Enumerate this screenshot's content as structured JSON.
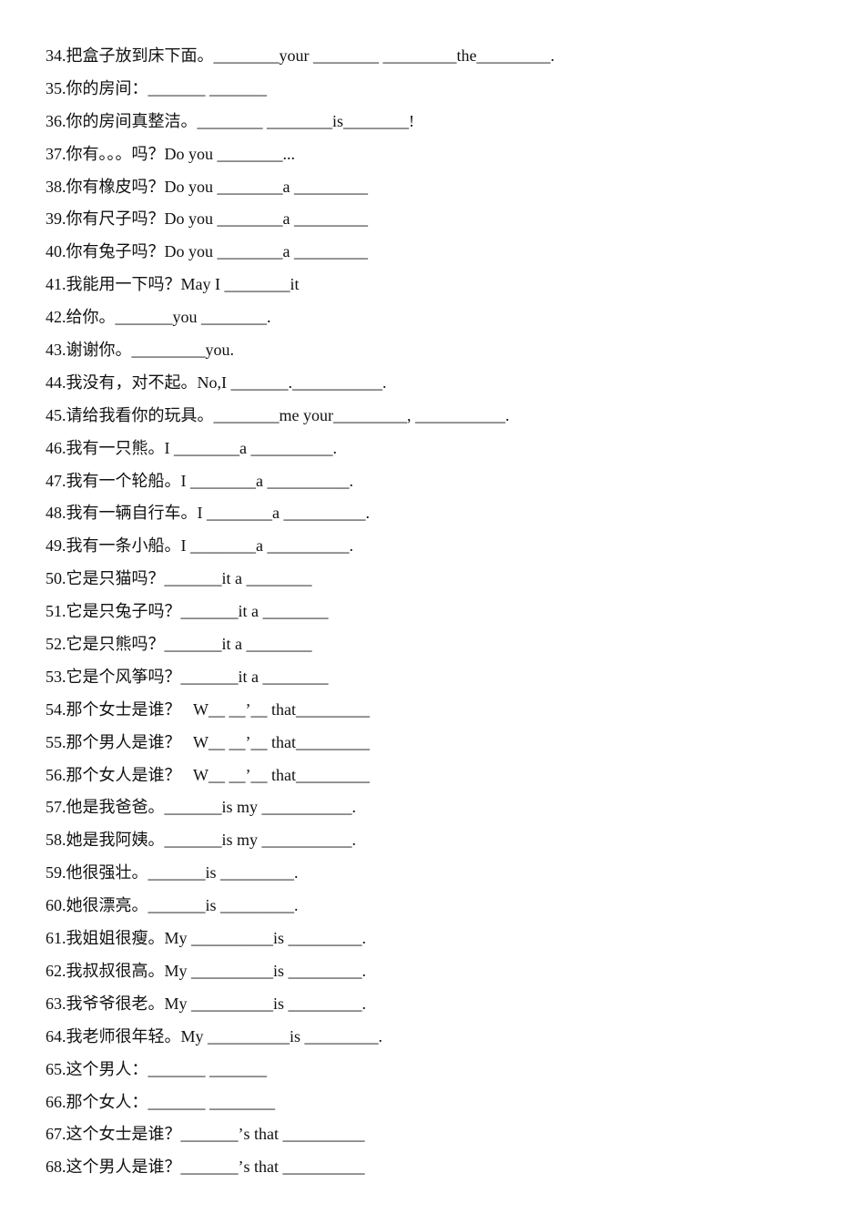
{
  "lines": [
    "34.把盒子放到床下面。________your ________ _________the_________.",
    "35.你的房间：_______ _______",
    "36.你的房间真整洁。________ ________is________!",
    "37.你有。。。吗？Do you ________...",
    "38.你有橡皮吗？Do you ________a _________",
    "39.你有尺子吗？Do you ________a _________",
    "40.你有兔子吗？Do you ________a _________",
    "41.我能用一下吗？May I ________it",
    "42.给你。_______you ________.",
    "43.谢谢你。_________you.",
    "44.我没有，对不起。No,I _______.___________.",
    "45.请给我看你的玩具。________me your_________, ___________.",
    "46.我有一只熊。I ________a __________.",
    "47.我有一个轮船。I ________a __________.",
    "48.我有一辆自行车。I ________a __________.",
    "49.我有一条小船。I ________a __________.",
    "50.它是只猫吗？_______it a ________",
    "51.它是只兔子吗？_______it a ________",
    "52.它是只熊吗？_______it a ________",
    "53.它是个风筝吗？_______it a ________",
    "54.那个女士是谁？   W__ __’__ that_________",
    "55.那个男人是谁？   W__ __’__ that_________",
    "56.那个女人是谁？   W__ __’__ that_________",
    "57.他是我爸爸。_______is my ___________.",
    "58.她是我阿姨。_______is my ___________.",
    "59.他很强壮。_______is _________.",
    "60.她很漂亮。_______is _________.",
    "61.我姐姐很瘦。My __________is _________.",
    "62.我叔叔很高。My __________is _________.",
    "63.我爷爷很老。My __________is _________.",
    "64.我老师很年轻。My __________is _________.",
    "65.这个男人：_______ _______",
    "66.那个女人：_______ ________",
    "67.这个女士是谁？_______’s that __________",
    "68.这个男人是谁？_______’s that __________"
  ]
}
